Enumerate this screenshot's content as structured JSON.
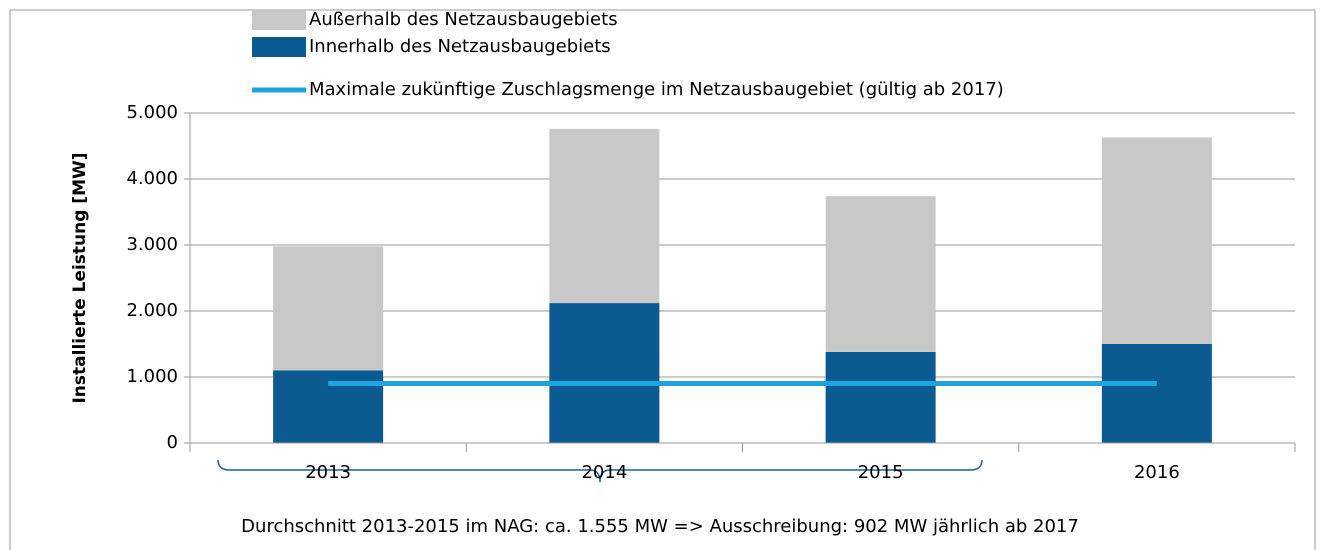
{
  "chart_data": {
    "type": "bar",
    "y_label": "Installierte Leistung [MW]",
    "annotation": "Durchschnitt 2013-2015 im NAG: ca. 1.555 MW => Ausschreibung: 902 MW jährlich ab 2017",
    "categories": [
      "2013",
      "2014",
      "2015",
      "2016"
    ],
    "series": [
      {
        "name": "Außerhalb des Netzausbaugebiets",
        "type": "bar",
        "color": "#c8c8c8",
        "values": [
          1880,
          2640,
          2360,
          3130
        ]
      },
      {
        "name": "Innerhalb des Netzausbaugebiets",
        "type": "bar",
        "color": "#0b5a92",
        "values": [
          1100,
          2120,
          1380,
          1500
        ]
      },
      {
        "name": "Maximale zukünftige Zuschlagsmenge im Netzausbaugebiet (gültig ab 2017)",
        "type": "line",
        "color": "#1ea3e0",
        "values": [
          902,
          902,
          902,
          902
        ]
      }
    ],
    "ylim": [
      0,
      5000
    ],
    "yticks": [
      0,
      {
        "value": 1000,
        "label": "1.000"
      },
      {
        "value": 2000,
        "label": "2.000"
      },
      {
        "value": 3000,
        "label": "3.000"
      },
      {
        "value": 4000,
        "label": "4.000"
      },
      {
        "value": 5000,
        "label": "5.000"
      }
    ],
    "grid": true
  }
}
